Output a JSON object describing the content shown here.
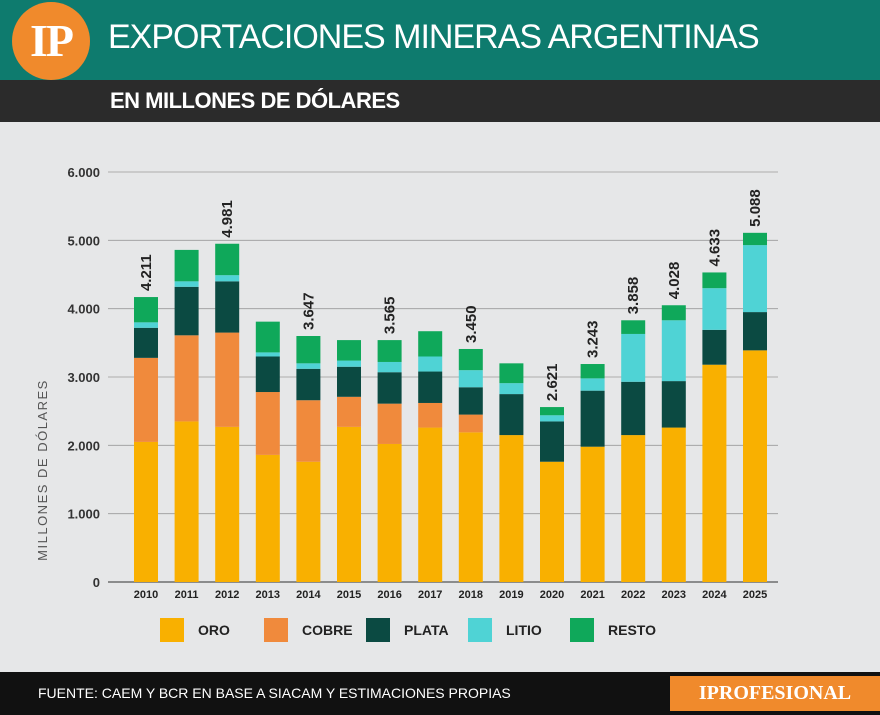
{
  "header": {
    "logo": "IP",
    "title": "EXPORTACIONES MINERAS ARGENTINAS",
    "subtitle": "EN MILLONES DE DÓLARES"
  },
  "footer": {
    "source": "FUENTE: CAEM Y BCR EN BASE A SIACAM Y ESTIMACIONES PROPIAS",
    "brand": "IPROFESIONAL"
  },
  "colors": {
    "oro": "#f9b000",
    "cobre": "#f08a3c",
    "plata": "#0b4a42",
    "litio": "#4fd3d5",
    "resto": "#0fa85a"
  },
  "chart_data": {
    "type": "bar",
    "stacked": true,
    "title": "EXPORTACIONES MINERAS ARGENTINAS",
    "subtitle": "EN MILLONES DE DÓLARES",
    "xlabel": "",
    "ylabel": "MILLONES DE DÓLARES",
    "ylim": [
      0,
      6000
    ],
    "yticks": [
      0,
      1000,
      2000,
      3000,
      4000,
      5000,
      6000
    ],
    "ytick_labels": [
      "0",
      "1.000",
      "2.000",
      "3.000",
      "4.000",
      "5.000",
      "6.000"
    ],
    "grid": true,
    "categories": [
      "2010",
      "2011",
      "2012",
      "2013",
      "2014",
      "2015",
      "2016",
      "2017",
      "2018",
      "2019",
      "2020",
      "2021",
      "2022",
      "2023",
      "2024",
      "2025"
    ],
    "series": [
      {
        "name": "ORO",
        "key": "oro",
        "values": [
          2050,
          2350,
          2270,
          1860,
          1760,
          2270,
          2020,
          2260,
          2190,
          2150,
          1760,
          1980,
          2150,
          2260,
          3180,
          3390
        ]
      },
      {
        "name": "COBRE",
        "key": "cobre",
        "values": [
          1230,
          1260,
          1380,
          920,
          900,
          440,
          590,
          360,
          260,
          0,
          0,
          0,
          0,
          0,
          0,
          0
        ]
      },
      {
        "name": "PLATA",
        "key": "plata",
        "values": [
          440,
          710,
          750,
          520,
          460,
          440,
          460,
          460,
          400,
          600,
          590,
          820,
          780,
          680,
          510,
          560
        ]
      },
      {
        "name": "LITIO",
        "key": "litio",
        "values": [
          80,
          80,
          90,
          60,
          80,
          90,
          150,
          220,
          250,
          160,
          90,
          180,
          700,
          890,
          610,
          980
        ]
      },
      {
        "name": "RESTO",
        "key": "resto",
        "values": [
          370,
          460,
          460,
          450,
          400,
          300,
          320,
          370,
          310,
          290,
          120,
          210,
          200,
          220,
          230,
          180
        ]
      }
    ],
    "totals": [
      4211,
      4981,
      3647,
      3565,
      3450,
      2621,
      3243,
      3858,
      4028,
      4633,
      5088
    ],
    "total_labels": [
      "4.211",
      "4.981",
      "3.647",
      "3.565",
      "3.450",
      "2.621",
      "3.243",
      "3.858",
      "4.028",
      "4.633",
      "5.088"
    ],
    "total_label_years": [
      "2010",
      "2012",
      "2014",
      "2016",
      "2018",
      "2020",
      "2021",
      "2022",
      "2023",
      "2024",
      "2025"
    ],
    "legend": [
      {
        "key": "oro",
        "label": "ORO"
      },
      {
        "key": "cobre",
        "label": "COBRE"
      },
      {
        "key": "plata",
        "label": "PLATA"
      },
      {
        "key": "litio",
        "label": "LITIO"
      },
      {
        "key": "resto",
        "label": "RESTO"
      }
    ]
  }
}
